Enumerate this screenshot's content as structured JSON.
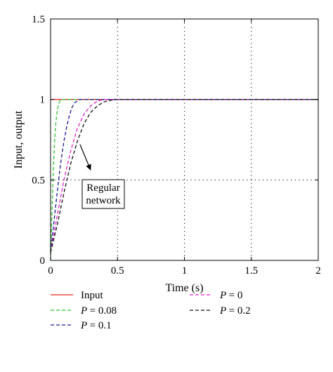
{
  "chart_data": {
    "type": "line",
    "title": "",
    "xlabel": "Time (s)",
    "ylabel": "Input, output",
    "xlim": [
      0,
      2
    ],
    "ylim": [
      0,
      1.5
    ],
    "xticks": [
      {
        "value": 0,
        "label": "0"
      },
      {
        "value": 0.5,
        "label": "0.5"
      },
      {
        "value": 1,
        "label": "1"
      },
      {
        "value": 1.5,
        "label": "1.5"
      },
      {
        "value": 2,
        "label": "2"
      }
    ],
    "yticks": [
      {
        "value": 0,
        "label": "0"
      },
      {
        "value": 0.5,
        "label": "0.5"
      },
      {
        "value": 1,
        "label": "1"
      },
      {
        "value": 1.5,
        "label": "1.5"
      }
    ],
    "grid": "dotted",
    "legend_position": "bottom",
    "series": [
      {
        "name": "Input",
        "var": "",
        "color": "#e8291c",
        "dash": "solid",
        "x": [
          0,
          2
        ],
        "y": [
          1,
          1
        ]
      },
      {
        "name": "= 0.08",
        "var": "P",
        "color": "#2fc12f",
        "dash": "dashed",
        "x": [
          0,
          0.01,
          0.02,
          0.03,
          0.04,
          0.05,
          0.06,
          0.07,
          0.08,
          0.1,
          2
        ],
        "y": [
          0,
          0.3,
          0.55,
          0.74,
          0.86,
          0.93,
          0.97,
          0.99,
          1.0,
          1.0,
          1.0
        ]
      },
      {
        "name": "= 0.1",
        "var": "P",
        "color": "#1a1a8c",
        "dash": "dashed",
        "x": [
          0,
          0.02,
          0.04,
          0.06,
          0.08,
          0.1,
          0.12,
          0.14,
          0.16,
          0.18,
          0.2,
          0.22,
          0.25,
          2
        ],
        "y": [
          0.05,
          0.2,
          0.35,
          0.5,
          0.63,
          0.74,
          0.83,
          0.9,
          0.95,
          0.98,
          0.99,
          1.0,
          1.0,
          1.0
        ]
      },
      {
        "name": "= 0",
        "var": "P",
        "color": "#e020c8",
        "dash": "dashed",
        "x": [
          0,
          0.05,
          0.1,
          0.15,
          0.2,
          0.25,
          0.3,
          0.35,
          0.4,
          0.45,
          2
        ],
        "y": [
          0.05,
          0.28,
          0.5,
          0.68,
          0.82,
          0.91,
          0.96,
          0.99,
          1.0,
          1.0,
          1.0
        ]
      },
      {
        "name": "= 0.2",
        "var": "P",
        "color": "#111111",
        "dash": "dashed",
        "x": [
          0,
          0.05,
          0.1,
          0.15,
          0.2,
          0.25,
          0.3,
          0.35,
          0.4,
          0.45,
          0.5,
          2
        ],
        "y": [
          0.05,
          0.22,
          0.42,
          0.6,
          0.74,
          0.85,
          0.92,
          0.96,
          0.985,
          0.995,
          1.0,
          1.0
        ]
      }
    ],
    "annotations": [
      {
        "lines": [
          "Regular",
          "network"
        ],
        "arrow_from": [
          0.22,
          0.72
        ],
        "arrow_to": [
          0.3,
          0.56
        ]
      }
    ]
  }
}
